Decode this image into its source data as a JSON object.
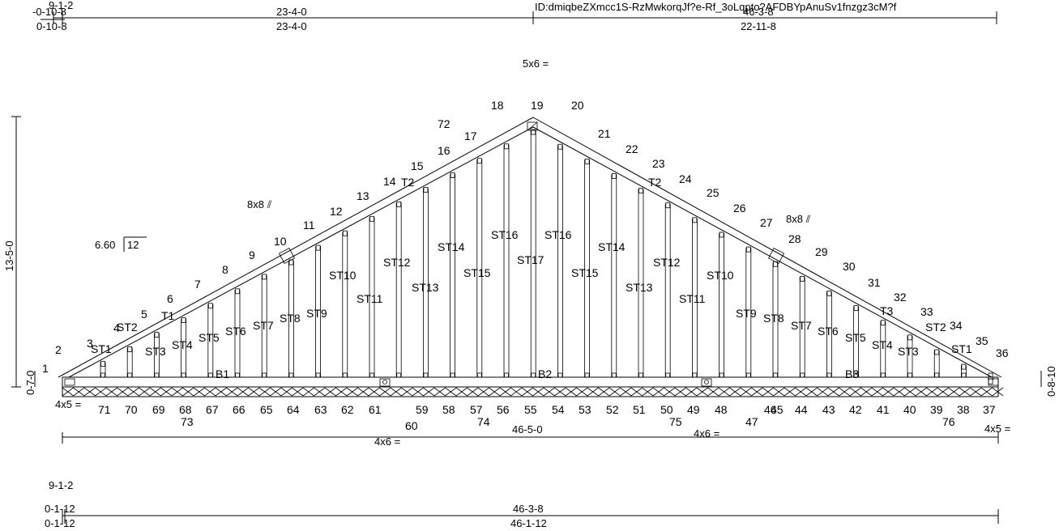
{
  "header": {
    "id_text": "ID:dmiqbeZXmcc1S-RzMwkorqJf?e-Rf_3oLqpto?AFDBYpAnuSv1fnzgz3cM?f",
    "left_stack": "9-1-2",
    "top_left_a": "-0-10-8",
    "top_left_b": "0-10-8",
    "top_mid_a": "23-4-0",
    "top_mid_b": "23-4-0",
    "top_right_a": "46-3-8",
    "top_right_b": "22-11-8"
  },
  "plates": {
    "peak": "5x6 =",
    "left_upper": "8x8 ⫽",
    "right_upper": "8x8 ⫽",
    "left_heel": "4x5 =",
    "right_heel": "4x5 =",
    "bottom_left": "4x6 =",
    "bottom_right": "4x6 ="
  },
  "pitch": {
    "rise": "6.60",
    "run": "12"
  },
  "height_dim": "13-5-0",
  "left_heel_dim": "0-7-0",
  "right_heel_dim": "0-8-10",
  "span_dim": "46-5-0",
  "bottom_dims": {
    "stack": "9-1-2",
    "a1": "0-1-12",
    "a2": "0-1-12",
    "b1": "46-3-8",
    "b2": "46-1-12"
  },
  "members": {
    "top_left": "T1",
    "top_left2": "T2",
    "top_right2": "T2",
    "top_right": "T3",
    "bottom_left": "B1",
    "bottom_mid": "B2",
    "bottom_right": "B3",
    "studs_left": [
      "ST1",
      "ST2",
      "ST3",
      "ST4",
      "ST5",
      "ST6",
      "ST7",
      "ST8",
      "ST9",
      "ST10",
      "ST11",
      "ST12",
      "ST13",
      "ST14",
      "ST15",
      "ST16"
    ],
    "stud_center": "ST17",
    "studs_right": [
      "ST16",
      "ST15",
      "ST14",
      "ST13",
      "ST12",
      "ST11",
      "ST10",
      "ST9",
      "ST8",
      "ST7",
      "ST6",
      "ST5",
      "ST4",
      "ST3",
      "ST2",
      "ST1"
    ]
  },
  "joints_top": [
    "1",
    "2",
    "3",
    "4",
    "5",
    "6",
    "7",
    "8",
    "9",
    "10",
    "11",
    "12",
    "13",
    "14",
    "15",
    "16",
    "17",
    "18",
    "19",
    "20",
    "21",
    "22",
    "23",
    "24",
    "25",
    "26",
    "27",
    "28",
    "29",
    "30",
    "31",
    "32",
    "33",
    "34",
    "35",
    "36"
  ],
  "joints_bottom": [
    "71",
    "70",
    "69",
    "68",
    "67",
    "66",
    "65",
    "64",
    "63",
    "62",
    "61",
    "59",
    "58",
    "57",
    "56",
    "55",
    "54",
    "53",
    "52",
    "51",
    "50",
    "49",
    "48",
    "46",
    "45",
    "44",
    "43",
    "42",
    "41",
    "40",
    "39",
    "38",
    "37"
  ],
  "joints_extra": [
    "72",
    "73",
    "74",
    "75",
    "76",
    "60",
    "47"
  ]
}
